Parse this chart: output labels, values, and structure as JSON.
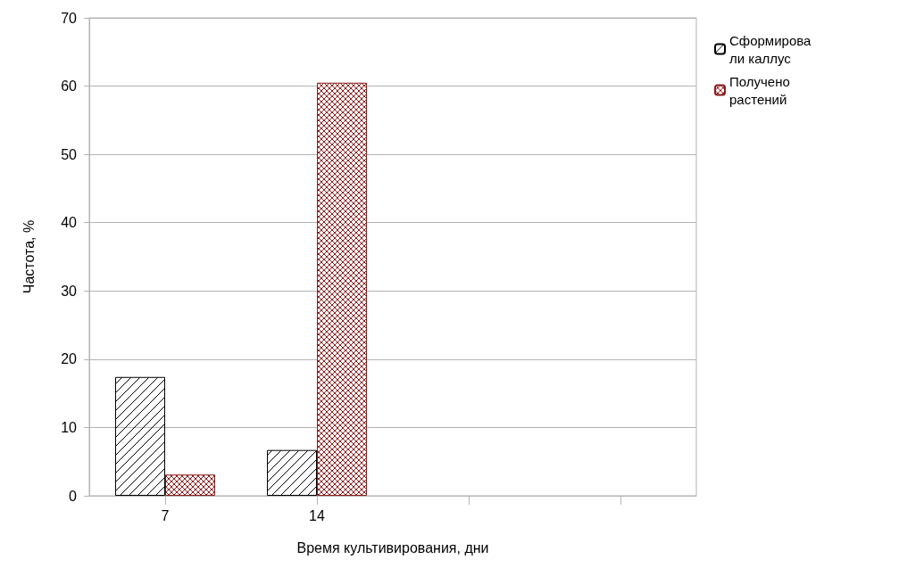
{
  "chart_data": {
    "type": "bar",
    "xlabel": "Время культивирования, дни",
    "ylabel": "Частота, %",
    "categories": [
      "7",
      "14",
      null,
      null
    ],
    "series": [
      {
        "name": "Сформировали каллус",
        "color": "#000000",
        "values": [
          17.4,
          6.7,
          null,
          null
        ]
      },
      {
        "name": "Получено растений",
        "color": "#8b1a1a",
        "values": [
          3.1,
          60.5,
          null,
          null
        ]
      }
    ],
    "ylim": [
      0,
      70
    ],
    "yticks": [
      0,
      10,
      20,
      30,
      40,
      50,
      60,
      70
    ],
    "grid": "y",
    "legend": "right"
  }
}
